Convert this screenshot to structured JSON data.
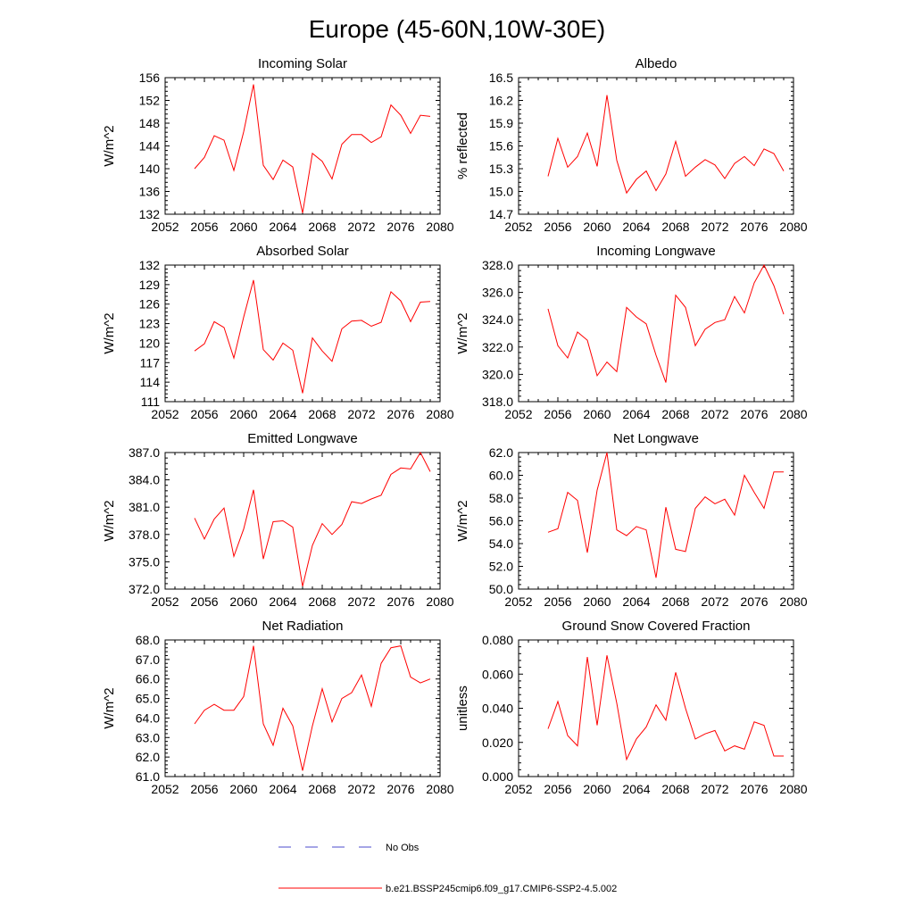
{
  "figure": {
    "title": "Europe (45-60N,10W-30E)",
    "legend": [
      {
        "label": "No Obs",
        "color": "#4b4bcc",
        "style": "dashed"
      },
      {
        "label": "b.e21.BSSP245cmip6.f09_g17.CMIP6-SSP2-4.5.002",
        "color": "#ff0000",
        "style": "solid"
      }
    ]
  },
  "chart_data": [
    {
      "type": "line",
      "title": "Incoming Solar",
      "ylabel": "W/m^2",
      "xlim": [
        2052,
        2080
      ],
      "ylim": [
        132,
        156
      ],
      "xticks": [
        "2052",
        "2056",
        "2060",
        "2064",
        "2068",
        "2072",
        "2076",
        "2080"
      ],
      "yticks": [
        "132",
        "136",
        "140",
        "144",
        "148",
        "152",
        "156"
      ],
      "grid": false,
      "series": [
        {
          "color": "#ff0000",
          "x": [
            2055,
            2056,
            2057,
            2058,
            2059,
            2060,
            2061,
            2062,
            2063,
            2064,
            2065,
            2066,
            2067,
            2068,
            2069,
            2070,
            2071,
            2072,
            2073,
            2074,
            2075,
            2076,
            2077,
            2078,
            2079
          ],
          "values": [
            140.0,
            142.0,
            145.8,
            145.0,
            139.7,
            146.5,
            154.8,
            140.6,
            138.1,
            141.5,
            140.3,
            132.2,
            142.7,
            141.3,
            138.2,
            144.3,
            146.0,
            146.0,
            144.6,
            145.6,
            151.2,
            149.4,
            146.2,
            149.4,
            149.2
          ]
        }
      ]
    },
    {
      "type": "line",
      "title": "Albedo",
      "ylabel": "% reflected",
      "xlim": [
        2052,
        2080
      ],
      "ylim": [
        14.7,
        16.5
      ],
      "xticks": [
        "2052",
        "2056",
        "2060",
        "2064",
        "2068",
        "2072",
        "2076",
        "2080"
      ],
      "yticks": [
        "14.7",
        "15.0",
        "15.3",
        "15.6",
        "15.9",
        "16.2",
        "16.5"
      ],
      "grid": false,
      "series": [
        {
          "color": "#ff0000",
          "x": [
            2055,
            2056,
            2057,
            2058,
            2059,
            2060,
            2061,
            2062,
            2063,
            2064,
            2065,
            2066,
            2067,
            2068,
            2069,
            2070,
            2071,
            2072,
            2073,
            2074,
            2075,
            2076,
            2077,
            2078,
            2079
          ],
          "values": [
            15.2,
            15.7,
            15.32,
            15.46,
            15.77,
            15.33,
            16.27,
            15.41,
            14.98,
            15.16,
            15.27,
            15.01,
            15.23,
            15.66,
            15.2,
            15.32,
            15.42,
            15.35,
            15.17,
            15.37,
            15.46,
            15.34,
            15.56,
            15.5,
            15.27
          ]
        }
      ]
    },
    {
      "type": "line",
      "title": "Absorbed Solar",
      "ylabel": "W/m^2",
      "xlim": [
        2052,
        2080
      ],
      "ylim": [
        111,
        132
      ],
      "xticks": [
        "2052",
        "2056",
        "2060",
        "2064",
        "2068",
        "2072",
        "2076",
        "2080"
      ],
      "yticks": [
        "111",
        "114",
        "117",
        "120",
        "123",
        "126",
        "129",
        "132"
      ],
      "grid": false,
      "series": [
        {
          "color": "#ff0000",
          "x": [
            2055,
            2056,
            2057,
            2058,
            2059,
            2060,
            2061,
            2062,
            2063,
            2064,
            2065,
            2066,
            2067,
            2068,
            2069,
            2070,
            2071,
            2072,
            2073,
            2074,
            2075,
            2076,
            2077,
            2078,
            2079
          ],
          "values": [
            118.8,
            119.9,
            123.3,
            122.4,
            117.7,
            124.0,
            129.7,
            119.0,
            117.4,
            120.0,
            118.9,
            112.3,
            120.8,
            118.8,
            117.2,
            122.2,
            123.4,
            123.5,
            122.6,
            123.2,
            127.9,
            126.5,
            123.3,
            126.3,
            126.4
          ]
        }
      ]
    },
    {
      "type": "line",
      "title": "Incoming Longwave",
      "ylabel": "W/m^2",
      "xlim": [
        2052,
        2080
      ],
      "ylim": [
        318.0,
        328.0
      ],
      "xticks": [
        "2052",
        "2056",
        "2060",
        "2064",
        "2068",
        "2072",
        "2076",
        "2080"
      ],
      "yticks": [
        "318.0",
        "320.0",
        "322.0",
        "324.0",
        "326.0",
        "328.0"
      ],
      "grid": false,
      "series": [
        {
          "color": "#ff0000",
          "x": [
            2055,
            2056,
            2057,
            2058,
            2059,
            2060,
            2061,
            2062,
            2063,
            2064,
            2065,
            2066,
            2067,
            2068,
            2069,
            2070,
            2071,
            2072,
            2073,
            2074,
            2075,
            2076,
            2077,
            2078,
            2079
          ],
          "values": [
            324.8,
            322.1,
            321.2,
            323.1,
            322.5,
            319.9,
            320.9,
            320.2,
            324.9,
            324.2,
            323.7,
            321.4,
            319.4,
            325.8,
            324.9,
            322.1,
            323.3,
            323.8,
            324.0,
            325.7,
            324.5,
            326.7,
            328.0,
            326.5,
            324.4
          ]
        }
      ]
    },
    {
      "type": "line",
      "title": "Emitted Longwave",
      "ylabel": "W/m^2",
      "xlim": [
        2052,
        2080
      ],
      "ylim": [
        372.0,
        387.0
      ],
      "xticks": [
        "2052",
        "2056",
        "2060",
        "2064",
        "2068",
        "2072",
        "2076",
        "2080"
      ],
      "yticks": [
        "372.0",
        "375.0",
        "378.0",
        "381.0",
        "384.0",
        "387.0"
      ],
      "grid": false,
      "series": [
        {
          "color": "#ff0000",
          "x": [
            2055,
            2056,
            2057,
            2058,
            2059,
            2060,
            2061,
            2062,
            2063,
            2064,
            2065,
            2066,
            2067,
            2068,
            2069,
            2070,
            2071,
            2072,
            2073,
            2074,
            2075,
            2076,
            2077,
            2078,
            2079
          ],
          "values": [
            379.8,
            377.5,
            379.7,
            380.9,
            375.6,
            378.6,
            382.9,
            375.3,
            379.4,
            379.5,
            378.8,
            372.3,
            376.8,
            379.2,
            378.0,
            379.1,
            381.6,
            381.4,
            381.9,
            382.3,
            384.6,
            385.3,
            385.2,
            387.0,
            384.9
          ]
        }
      ]
    },
    {
      "type": "line",
      "title": "Net Longwave",
      "ylabel": "W/m^2",
      "xlim": [
        2052,
        2080
      ],
      "ylim": [
        50.0,
        62.0
      ],
      "xticks": [
        "2052",
        "2056",
        "2060",
        "2064",
        "2068",
        "2072",
        "2076",
        "2080"
      ],
      "yticks": [
        "50.0",
        "52.0",
        "54.0",
        "56.0",
        "58.0",
        "60.0",
        "62.0"
      ],
      "grid": false,
      "series": [
        {
          "color": "#ff0000",
          "x": [
            2055,
            2056,
            2057,
            2058,
            2059,
            2060,
            2061,
            2062,
            2063,
            2064,
            2065,
            2066,
            2067,
            2068,
            2069,
            2070,
            2071,
            2072,
            2073,
            2074,
            2075,
            2076,
            2077,
            2078,
            2079
          ],
          "values": [
            55.0,
            55.3,
            58.5,
            57.8,
            53.2,
            58.7,
            62.0,
            55.2,
            54.7,
            55.5,
            55.2,
            51.0,
            57.2,
            53.5,
            53.3,
            57.1,
            58.1,
            57.5,
            57.9,
            56.5,
            60.0,
            58.5,
            57.1,
            60.3,
            60.3
          ]
        }
      ]
    },
    {
      "type": "line",
      "title": "Net Radiation",
      "ylabel": "W/m^2",
      "xlim": [
        2052,
        2080
      ],
      "ylim": [
        61.0,
        68.0
      ],
      "xticks": [
        "2052",
        "2056",
        "2060",
        "2064",
        "2068",
        "2072",
        "2076",
        "2080"
      ],
      "yticks": [
        "61.0",
        "62.0",
        "63.0",
        "64.0",
        "65.0",
        "66.0",
        "67.0",
        "68.0"
      ],
      "grid": false,
      "series": [
        {
          "color": "#ff0000",
          "x": [
            2055,
            2056,
            2057,
            2058,
            2059,
            2060,
            2061,
            2062,
            2063,
            2064,
            2065,
            2066,
            2067,
            2068,
            2069,
            2070,
            2071,
            2072,
            2073,
            2074,
            2075,
            2076,
            2077,
            2078,
            2079
          ],
          "values": [
            63.7,
            64.4,
            64.7,
            64.4,
            64.4,
            65.1,
            67.7,
            63.7,
            62.6,
            64.5,
            63.6,
            61.3,
            63.6,
            65.5,
            63.8,
            65.0,
            65.3,
            66.2,
            64.6,
            66.8,
            67.6,
            67.7,
            66.1,
            65.8,
            66.0
          ]
        }
      ]
    },
    {
      "type": "line",
      "title": "Ground Snow Covered Fraction",
      "ylabel": "unitless",
      "xlim": [
        2052,
        2080
      ],
      "ylim": [
        0.0,
        0.08
      ],
      "xticks": [
        "2052",
        "2056",
        "2060",
        "2064",
        "2068",
        "2072",
        "2076",
        "2080"
      ],
      "yticks": [
        "0.000",
        "0.020",
        "0.040",
        "0.060",
        "0.080"
      ],
      "grid": false,
      "series": [
        {
          "color": "#ff0000",
          "x": [
            2055,
            2056,
            2057,
            2058,
            2059,
            2060,
            2061,
            2062,
            2063,
            2064,
            2065,
            2066,
            2067,
            2068,
            2069,
            2070,
            2071,
            2072,
            2073,
            2074,
            2075,
            2076,
            2077,
            2078,
            2079
          ],
          "values": [
            0.028,
            0.044,
            0.024,
            0.018,
            0.07,
            0.03,
            0.071,
            0.043,
            0.01,
            0.022,
            0.029,
            0.042,
            0.033,
            0.061,
            0.04,
            0.022,
            0.025,
            0.027,
            0.015,
            0.018,
            0.016,
            0.032,
            0.03,
            0.012,
            0.012
          ]
        }
      ]
    }
  ]
}
